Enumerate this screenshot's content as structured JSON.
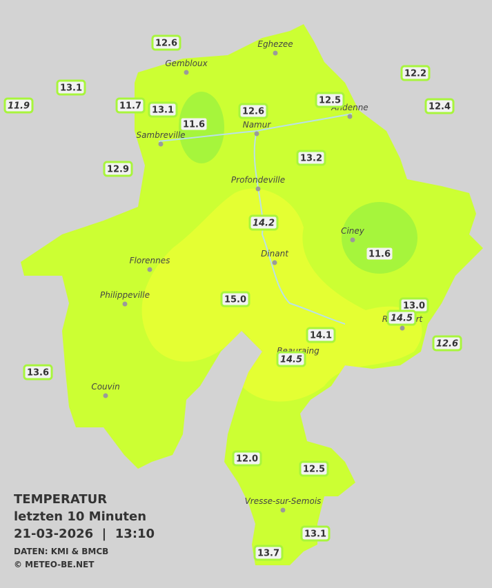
{
  "title": {
    "heading": "TEMPERATUR",
    "period": "letzten 10 Minuten",
    "timestamp": "21-03-2026  |  13:10",
    "source": "DATEN: KMI & BMCB",
    "copyright": "© METEO-BE.NET"
  },
  "places": [
    "Eghezee",
    "Gembloux",
    "Andenne",
    "Namur",
    "Sambreville",
    "Profondeville",
    "Ciney",
    "Dinant",
    "Florennes",
    "Philippeville",
    "Rochefort",
    "Beauraing",
    "Couvin",
    "Vresse-sur-Semois"
  ],
  "stations": [
    {
      "label": "12.6",
      "italic": false
    },
    {
      "label": "13.1",
      "italic": false
    },
    {
      "label": "11.9",
      "italic": true
    },
    {
      "label": "11.7",
      "italic": false
    },
    {
      "label": "13.1",
      "italic": false
    },
    {
      "label": "11.6",
      "italic": false
    },
    {
      "label": "12.6",
      "italic": false
    },
    {
      "label": "12.5",
      "italic": false
    },
    {
      "label": "12.2",
      "italic": false
    },
    {
      "label": "12.4",
      "italic": false
    },
    {
      "label": "12.9",
      "italic": false
    },
    {
      "label": "13.2",
      "italic": false
    },
    {
      "label": "14.2",
      "italic": true
    },
    {
      "label": "11.6",
      "italic": false
    },
    {
      "label": "15.0",
      "italic": false
    },
    {
      "label": "13.0",
      "italic": false
    },
    {
      "label": "14.5",
      "italic": true
    },
    {
      "label": "14.1",
      "italic": false
    },
    {
      "label": "12.6",
      "italic": true
    },
    {
      "label": "14.5",
      "italic": true
    },
    {
      "label": "13.6",
      "italic": false
    },
    {
      "label": "12.0",
      "italic": false
    },
    {
      "label": "12.5",
      "italic": false
    },
    {
      "label": "13.1",
      "italic": false
    },
    {
      "label": "13.7",
      "italic": false
    }
  ]
}
